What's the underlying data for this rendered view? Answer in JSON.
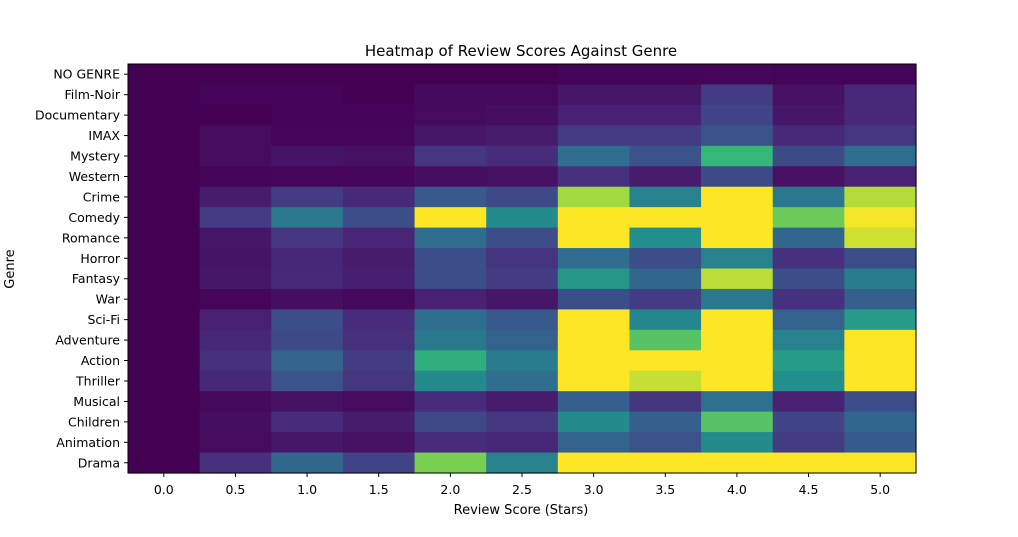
{
  "chart_data": {
    "type": "heatmap",
    "title": "Heatmap of Review Scores Against Genre",
    "xlabel": "Review Score (Stars)",
    "ylabel": "Genre",
    "x": [
      "0.0",
      "0.5",
      "1.0",
      "1.5",
      "2.0",
      "2.5",
      "3.0",
      "3.5",
      "4.0",
      "4.5",
      "5.0"
    ],
    "y": [
      "NO GENRE",
      "Film-Noir",
      "Documentary",
      "IMAX",
      "Mystery",
      "Western",
      "Crime",
      "Comedy",
      "Romance",
      "Horror",
      "Fantasy",
      "War",
      "Sci-Fi",
      "Adventure",
      "Action",
      "Thriller",
      "Musical",
      "Children",
      "Animation",
      "Drama"
    ],
    "colormap": "viridis",
    "values": [
      [
        0.0,
        0.0,
        0.0,
        0.0,
        0.0,
        0.0,
        0.01,
        0.01,
        0.02,
        0.01,
        0.01
      ],
      [
        0.0,
        0.01,
        0.01,
        0.0,
        0.03,
        0.03,
        0.08,
        0.08,
        0.22,
        0.06,
        0.15
      ],
      [
        0.0,
        0.0,
        0.01,
        0.01,
        0.04,
        0.05,
        0.12,
        0.12,
        0.25,
        0.08,
        0.15
      ],
      [
        0.0,
        0.04,
        0.02,
        0.02,
        0.08,
        0.1,
        0.22,
        0.22,
        0.32,
        0.15,
        0.2
      ],
      [
        0.0,
        0.04,
        0.07,
        0.06,
        0.2,
        0.16,
        0.45,
        0.32,
        0.75,
        0.28,
        0.45
      ],
      [
        0.0,
        0.01,
        0.02,
        0.02,
        0.05,
        0.06,
        0.18,
        0.1,
        0.28,
        0.06,
        0.12
      ],
      [
        0.0,
        0.1,
        0.22,
        0.15,
        0.35,
        0.28,
        0.9,
        0.55,
        1.0,
        0.5,
        0.92
      ],
      [
        0.0,
        0.22,
        0.5,
        0.3,
        1.0,
        0.6,
        1.0,
        1.0,
        1.0,
        0.83,
        0.99
      ],
      [
        0.0,
        0.08,
        0.2,
        0.13,
        0.45,
        0.3,
        1.0,
        0.62,
        1.0,
        0.42,
        0.95
      ],
      [
        0.0,
        0.07,
        0.14,
        0.1,
        0.3,
        0.19,
        0.45,
        0.3,
        0.55,
        0.18,
        0.3
      ],
      [
        0.0,
        0.08,
        0.15,
        0.11,
        0.3,
        0.22,
        0.65,
        0.42,
        0.93,
        0.3,
        0.52
      ],
      [
        0.0,
        0.02,
        0.05,
        0.03,
        0.12,
        0.08,
        0.3,
        0.22,
        0.5,
        0.18,
        0.38
      ],
      [
        0.0,
        0.12,
        0.3,
        0.16,
        0.45,
        0.35,
        1.0,
        0.58,
        1.0,
        0.4,
        0.66
      ],
      [
        0.0,
        0.14,
        0.28,
        0.17,
        0.5,
        0.4,
        1.0,
        0.8,
        1.0,
        0.55,
        1.0
      ],
      [
        0.0,
        0.17,
        0.4,
        0.22,
        0.72,
        0.52,
        1.0,
        1.0,
        1.0,
        0.66,
        1.0
      ],
      [
        0.0,
        0.14,
        0.32,
        0.2,
        0.6,
        0.45,
        1.0,
        0.94,
        1.0,
        0.62,
        1.0
      ],
      [
        0.0,
        0.03,
        0.06,
        0.04,
        0.16,
        0.1,
        0.38,
        0.19,
        0.46,
        0.12,
        0.3
      ],
      [
        0.0,
        0.05,
        0.16,
        0.1,
        0.28,
        0.2,
        0.6,
        0.38,
        0.8,
        0.25,
        0.42
      ],
      [
        0.0,
        0.04,
        0.08,
        0.06,
        0.16,
        0.14,
        0.4,
        0.32,
        0.6,
        0.22,
        0.36
      ],
      [
        0.0,
        0.17,
        0.42,
        0.25,
        0.85,
        0.55,
        1.0,
        1.0,
        1.0,
        1.0,
        1.0
      ]
    ],
    "vrange": [
      0,
      1
    ],
    "grid": false,
    "legend": "none"
  }
}
